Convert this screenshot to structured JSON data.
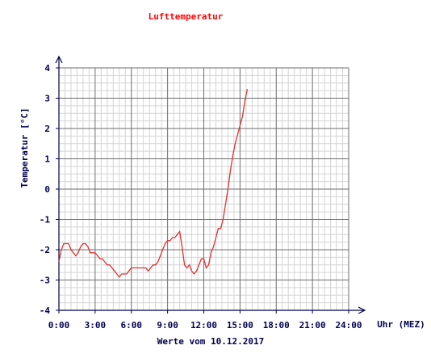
{
  "chart_data": {
    "type": "line",
    "title": "Lufttemperatur",
    "ylabel": "Temperatur [°C]",
    "xlabel": "Uhr (MEZ)",
    "footer": "Werte vom 10.12.2017",
    "xlim": [
      0,
      24
    ],
    "ylim": [
      -4,
      4
    ],
    "x_tick_labels": [
      "0:00",
      "3:00",
      "6:00",
      "9:00",
      "12:00",
      "15:00",
      "18:00",
      "21:00",
      "24:00"
    ],
    "y_tick_labels": [
      "-4",
      "-3",
      "-2",
      "-1",
      "0",
      "1",
      "2",
      "3",
      "4"
    ],
    "grid": true,
    "series_color": "#e03030",
    "axis_color": "#000050",
    "series": [
      {
        "x": [
          0.0,
          0.2,
          0.4,
          0.6,
          0.8,
          1.0,
          1.2,
          1.4,
          1.6,
          1.8,
          2.0,
          2.2,
          2.4,
          2.6,
          2.8,
          3.0,
          3.2,
          3.4,
          3.6,
          3.8,
          4.0,
          4.2,
          4.4,
          4.6,
          4.8,
          5.0,
          5.2,
          5.4,
          5.6,
          5.8,
          6.0,
          6.2,
          6.4,
          6.6,
          6.8,
          7.0,
          7.2,
          7.4,
          7.6,
          7.8,
          8.0,
          8.2,
          8.4,
          8.6,
          8.8,
          9.0,
          9.2,
          9.4,
          9.6,
          9.8,
          10.0,
          10.2,
          10.4,
          10.6,
          10.8,
          11.0,
          11.2,
          11.4,
          11.6,
          11.8,
          12.0,
          12.2,
          12.4,
          12.6,
          12.8,
          13.0,
          13.2,
          13.4,
          13.6,
          13.8,
          14.0,
          14.2,
          14.4,
          14.6,
          14.8,
          15.0,
          15.2,
          15.4,
          15.6
        ],
        "y": [
          -2.4,
          -2.0,
          -1.8,
          -1.8,
          -1.8,
          -2.0,
          -2.1,
          -2.2,
          -2.1,
          -1.9,
          -1.8,
          -1.8,
          -1.9,
          -2.1,
          -2.1,
          -2.1,
          -2.2,
          -2.3,
          -2.3,
          -2.4,
          -2.5,
          -2.5,
          -2.6,
          -2.7,
          -2.8,
          -2.9,
          -2.8,
          -2.8,
          -2.8,
          -2.7,
          -2.6,
          -2.6,
          -2.6,
          -2.6,
          -2.6,
          -2.6,
          -2.6,
          -2.7,
          -2.6,
          -2.5,
          -2.5,
          -2.4,
          -2.2,
          -2.0,
          -1.8,
          -1.7,
          -1.7,
          -1.6,
          -1.6,
          -1.5,
          -1.4,
          -1.9,
          -2.5,
          -2.6,
          -2.5,
          -2.7,
          -2.8,
          -2.7,
          -2.5,
          -2.3,
          -2.3,
          -2.6,
          -2.5,
          -2.1,
          -1.9,
          -1.6,
          -1.3,
          -1.3,
          -1.0,
          -0.5,
          0.0,
          0.6,
          1.1,
          1.5,
          1.8,
          2.1,
          2.4,
          2.9,
          3.3
        ]
      }
    ]
  }
}
